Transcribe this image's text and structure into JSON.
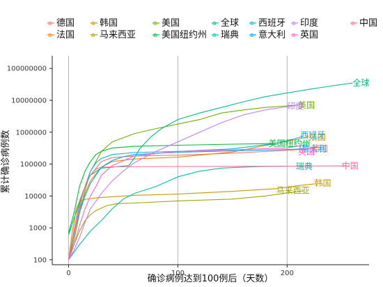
{
  "chart_data": {
    "type": "line",
    "title": "",
    "xlabel": "确诊病例达到100例后（天数）",
    "ylabel": "累计确诊病例数",
    "x_ticks": [
      0,
      100,
      200
    ],
    "y_scale": "log",
    "y_ticks": [
      "100",
      "1000",
      "10000",
      "100000",
      "1000000",
      "10000000",
      "100000000"
    ],
    "y_tick_values": [
      100,
      1000,
      10000,
      100000,
      1000000,
      10000000,
      100000000
    ],
    "xlim": [
      -15,
      275
    ],
    "ylim": [
      70,
      250000000
    ],
    "grid": "vertical major lines",
    "legend_position": "top",
    "series": [
      {
        "name": "德国",
        "color": "#F8766D",
        "label": "德国",
        "label_at": [
          222,
          300000
        ],
        "points": [
          [
            0,
            100
          ],
          [
            5,
            900
          ],
          [
            10,
            7000
          ],
          [
            15,
            20000
          ],
          [
            20,
            45000
          ],
          [
            30,
            120000
          ],
          [
            40,
            160000
          ],
          [
            60,
            180000
          ],
          [
            100,
            190000
          ],
          [
            150,
            220000
          ],
          [
            200,
            270000
          ],
          [
            222,
            300000
          ]
        ]
      },
      {
        "name": "法国",
        "color": "#E58700",
        "label": "法国",
        "label_at": [
          220,
          700000
        ],
        "points": [
          [
            0,
            100
          ],
          [
            5,
            600
          ],
          [
            10,
            4000
          ],
          [
            15,
            12000
          ],
          [
            20,
            30000
          ],
          [
            30,
            80000
          ],
          [
            40,
            120000
          ],
          [
            60,
            145000
          ],
          [
            100,
            165000
          ],
          [
            150,
            240000
          ],
          [
            190,
            450000
          ],
          [
            210,
            600000
          ],
          [
            220,
            750000
          ]
        ]
      },
      {
        "name": "韩国",
        "color": "#C99800",
        "label": "韩国",
        "label_at": [
          225,
          25000
        ],
        "points": [
          [
            0,
            100
          ],
          [
            3,
            600
          ],
          [
            7,
            4000
          ],
          [
            10,
            6500
          ],
          [
            15,
            7800
          ],
          [
            20,
            8300
          ],
          [
            30,
            9000
          ],
          [
            60,
            10500
          ],
          [
            100,
            11500
          ],
          [
            150,
            14000
          ],
          [
            190,
            17000
          ],
          [
            210,
            21000
          ],
          [
            225,
            24000
          ]
        ]
      },
      {
        "name": "马来西亚",
        "color": "#A3A500",
        "label": "马来西亚",
        "label_at": [
          190,
          15000
        ],
        "points": [
          [
            0,
            100
          ],
          [
            5,
            300
          ],
          [
            10,
            800
          ],
          [
            15,
            1700
          ],
          [
            20,
            2600
          ],
          [
            25,
            3500
          ],
          [
            35,
            5000
          ],
          [
            45,
            5800
          ],
          [
            60,
            6000
          ],
          [
            100,
            7000
          ],
          [
            150,
            8000
          ],
          [
            180,
            10000
          ],
          [
            200,
            12500
          ],
          [
            215,
            14500
          ]
        ]
      },
      {
        "name": "美国",
        "color": "#6BB100",
        "label": "美国",
        "label_at": [
          210,
          7000000
        ],
        "points": [
          [
            0,
            100
          ],
          [
            5,
            400
          ],
          [
            10,
            3000
          ],
          [
            15,
            15000
          ],
          [
            20,
            60000
          ],
          [
            25,
            120000
          ],
          [
            30,
            250000
          ],
          [
            40,
            500000
          ],
          [
            60,
            900000
          ],
          [
            80,
            1300000
          ],
          [
            100,
            1800000
          ],
          [
            120,
            2500000
          ],
          [
            140,
            4000000
          ],
          [
            160,
            5000000
          ],
          [
            180,
            6000000
          ],
          [
            200,
            6700000
          ],
          [
            213,
            7200000
          ]
        ]
      },
      {
        "name": "美国纽约州",
        "color": "#00BA38",
        "label": "美国纽约州",
        "label_at": [
          183,
          440000
        ],
        "points": [
          [
            0,
            700
          ],
          [
            5,
            3000
          ],
          [
            10,
            20000
          ],
          [
            15,
            60000
          ],
          [
            20,
            120000
          ],
          [
            25,
            200000
          ],
          [
            30,
            250000
          ],
          [
            40,
            320000
          ],
          [
            60,
            360000
          ],
          [
            100,
            390000
          ],
          [
            150,
            420000
          ],
          [
            185,
            440000
          ]
        ]
      },
      {
        "name": "全球",
        "color": "#00BF7D",
        "label": "全球",
        "label_at": [
          260,
          35000000
        ],
        "points": [
          [
            0,
            600
          ],
          [
            5,
            2000
          ],
          [
            10,
            6000
          ],
          [
            15,
            20000
          ],
          [
            20,
            45000
          ],
          [
            30,
            75000
          ],
          [
            40,
            80000
          ],
          [
            55,
            90000
          ],
          [
            60,
            150000
          ],
          [
            65,
            300000
          ],
          [
            75,
            700000
          ],
          [
            85,
            1300000
          ],
          [
            100,
            2500000
          ],
          [
            120,
            4000000
          ],
          [
            140,
            6000000
          ],
          [
            160,
            9000000
          ],
          [
            180,
            13000000
          ],
          [
            200,
            17000000
          ],
          [
            220,
            22000000
          ],
          [
            240,
            28000000
          ],
          [
            260,
            35000000
          ]
        ]
      },
      {
        "name": "瑞典",
        "color": "#00C1A3",
        "label": "瑞典",
        "label_at": [
          208,
          85000
        ],
        "points": [
          [
            0,
            100
          ],
          [
            10,
            300
          ],
          [
            20,
            800
          ],
          [
            30,
            1700
          ],
          [
            40,
            4000
          ],
          [
            50,
            8000
          ],
          [
            60,
            12000
          ],
          [
            80,
            20000
          ],
          [
            100,
            40000
          ],
          [
            120,
            60000
          ],
          [
            140,
            75000
          ],
          [
            160,
            80000
          ],
          [
            180,
            85000
          ],
          [
            200,
            86000
          ]
        ]
      },
      {
        "name": "西班牙",
        "color": "#00BAE0",
        "label": "西班牙",
        "label_at": [
          212,
          800000
        ],
        "points": [
          [
            0,
            100
          ],
          [
            5,
            600
          ],
          [
            10,
            5000
          ],
          [
            15,
            20000
          ],
          [
            20,
            60000
          ],
          [
            25,
            110000
          ],
          [
            30,
            150000
          ],
          [
            40,
            200000
          ],
          [
            60,
            230000
          ],
          [
            100,
            250000
          ],
          [
            150,
            300000
          ],
          [
            190,
            450000
          ],
          [
            205,
            600000
          ],
          [
            215,
            750000
          ]
        ]
      },
      {
        "name": "意大利",
        "color": "#00A9FF",
        "label": "意大利",
        "label_at": [
          213,
          300000
        ],
        "points": [
          [
            0,
            100
          ],
          [
            5,
            700
          ],
          [
            10,
            3000
          ],
          [
            15,
            10000
          ],
          [
            20,
            25000
          ],
          [
            30,
            80000
          ],
          [
            40,
            130000
          ],
          [
            50,
            170000
          ],
          [
            60,
            200000
          ],
          [
            100,
            235000
          ],
          [
            150,
            260000
          ],
          [
            200,
            285000
          ],
          [
            215,
            300000
          ]
        ]
      },
      {
        "name": "印度",
        "color": "#C77CFF",
        "label": "印度",
        "label_at": [
          200,
          6500000
        ],
        "points": [
          [
            0,
            100
          ],
          [
            5,
            200
          ],
          [
            10,
            500
          ],
          [
            15,
            1500
          ],
          [
            20,
            4000
          ],
          [
            30,
            12000
          ],
          [
            40,
            30000
          ],
          [
            50,
            60000
          ],
          [
            60,
            110000
          ],
          [
            80,
            250000
          ],
          [
            100,
            500000
          ],
          [
            120,
            1000000
          ],
          [
            140,
            2000000
          ],
          [
            160,
            3500000
          ],
          [
            180,
            5000000
          ],
          [
            200,
            6300000
          ],
          [
            210,
            7000000
          ]
        ]
      },
      {
        "name": "英国",
        "color": "#FF61CC",
        "label": "英国",
        "label_at": [
          210,
          250000
        ],
        "points": [
          [
            0,
            100
          ],
          [
            5,
            300
          ],
          [
            10,
            1200
          ],
          [
            15,
            4000
          ],
          [
            20,
            10000
          ],
          [
            25,
            20000
          ],
          [
            30,
            45000
          ],
          [
            40,
            90000
          ],
          [
            60,
            180000
          ],
          [
            100,
            250000
          ],
          [
            150,
            280000
          ],
          [
            200,
            320000
          ],
          [
            215,
            400000
          ]
        ]
      },
      {
        "name": "中国",
        "color": "#FF6C91",
        "label": "中国",
        "label_at": [
          250,
          88000
        ],
        "points": [
          [
            0,
            100
          ],
          [
            4,
            500
          ],
          [
            8,
            2000
          ],
          [
            12,
            9000
          ],
          [
            16,
            25000
          ],
          [
            20,
            45000
          ],
          [
            25,
            70000
          ],
          [
            30,
            80000
          ],
          [
            40,
            82000
          ],
          [
            100,
            84000
          ],
          [
            150,
            85000
          ],
          [
            200,
            86000
          ],
          [
            255,
            88000
          ]
        ]
      }
    ]
  }
}
